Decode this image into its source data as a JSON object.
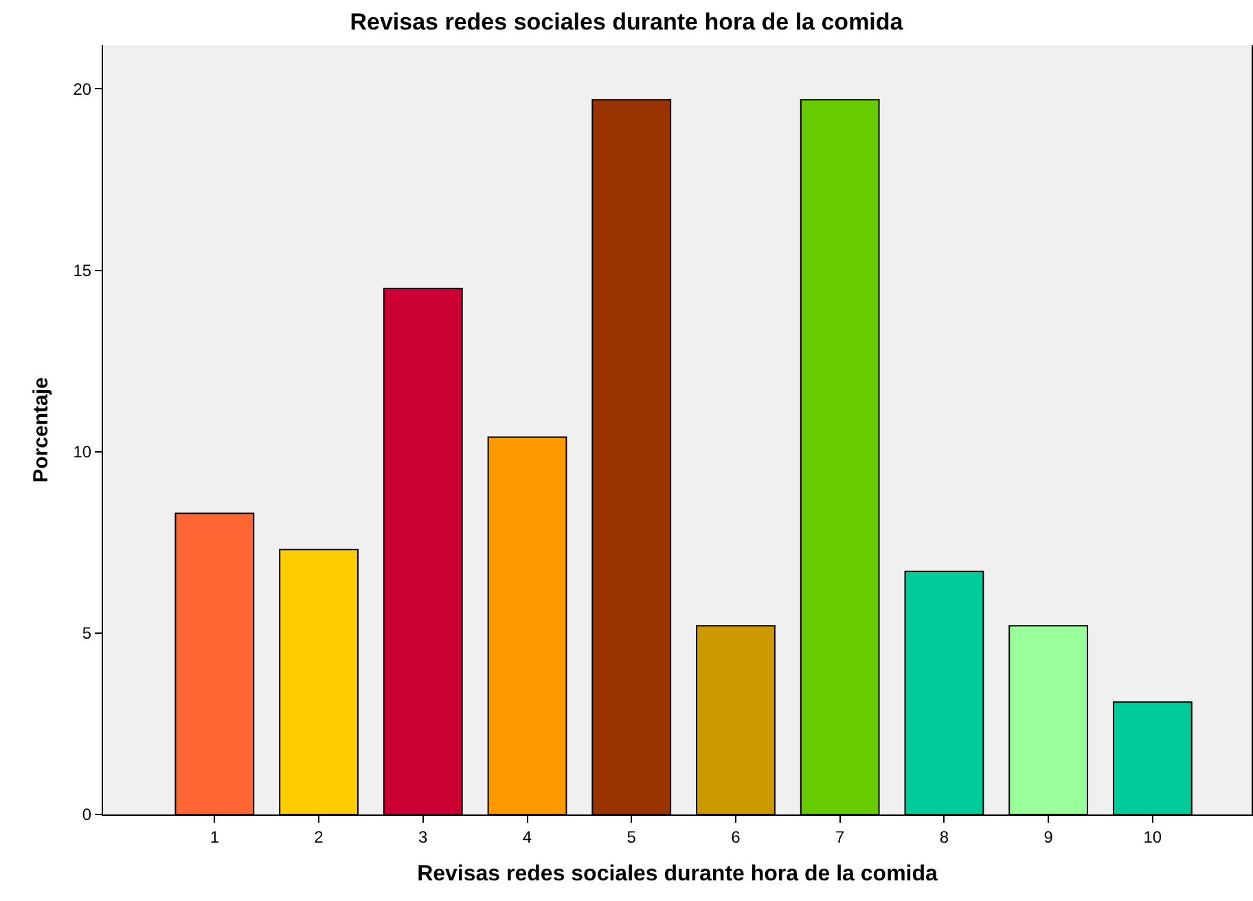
{
  "chart_data": {
    "type": "bar",
    "title": "Revisas redes sociales durante hora de la comida",
    "xlabel": "Revisas redes sociales durante hora de la comida",
    "ylabel": "Porcentaje",
    "categories": [
      "1",
      "2",
      "3",
      "4",
      "5",
      "6",
      "7",
      "8",
      "9",
      "10"
    ],
    "values": [
      8.3,
      7.3,
      14.5,
      10.4,
      19.7,
      5.2,
      19.7,
      6.7,
      5.2,
      3.1
    ],
    "colors": [
      "#ff6633",
      "#ffcc00",
      "#cc0033",
      "#ff9900",
      "#993300",
      "#cc9900",
      "#66cc00",
      "#00cc99",
      "#99ff99",
      "#00cc99"
    ],
    "ylim": [
      0,
      21.2
    ],
    "yticks": [
      0,
      5,
      10,
      15,
      20
    ],
    "grid": false,
    "legend": false
  }
}
